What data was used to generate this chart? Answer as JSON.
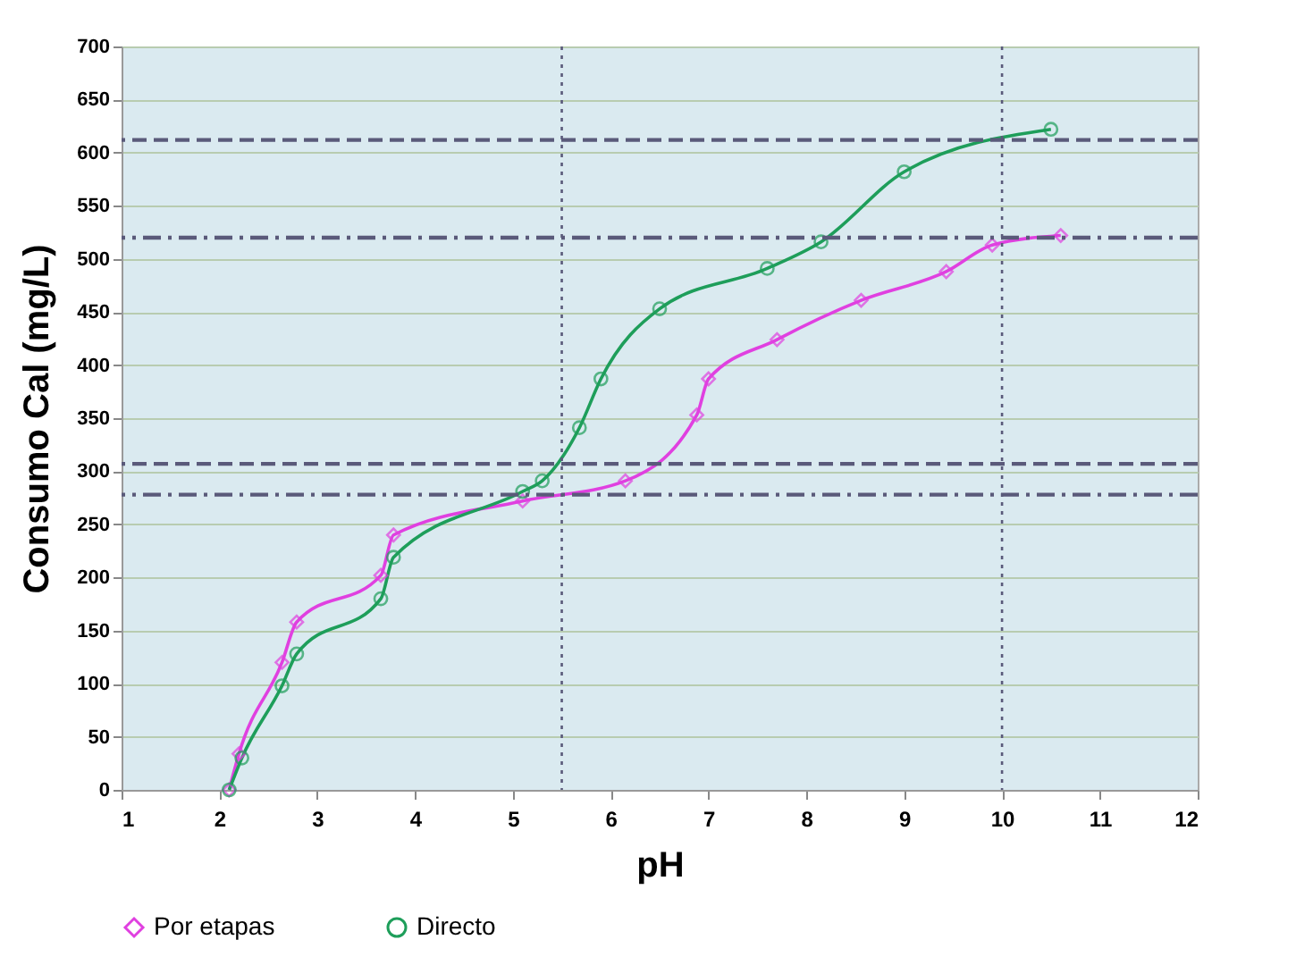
{
  "chart_data": {
    "type": "line",
    "xlabel": "pH",
    "ylabel": "Consumo Cal (mg/L)",
    "xlim": [
      1,
      12
    ],
    "xticks": [
      1,
      2,
      3,
      4,
      5,
      6,
      7,
      8,
      9,
      10,
      11,
      12
    ],
    "ylim": [
      0,
      700
    ],
    "yticks": [
      0,
      50,
      100,
      150,
      200,
      250,
      300,
      350,
      400,
      450,
      500,
      550,
      600,
      650,
      700
    ],
    "grid": "y",
    "legend": "bottom",
    "series": [
      {
        "name": "Por etapas",
        "color": "#e040e0",
        "marker": "diamond",
        "x": [
          2.1,
          2.2,
          2.64,
          2.79,
          3.65,
          3.78,
          5.1,
          6.15,
          6.88,
          7.0,
          7.7,
          8.56,
          9.43,
          9.9,
          10.6
        ],
        "values": [
          0,
          34,
          120,
          158,
          202,
          240,
          272,
          291,
          353,
          387,
          424,
          461,
          488,
          513,
          522
        ]
      },
      {
        "name": "Directo",
        "color": "#1e9e5a",
        "marker": "circle",
        "x": [
          2.1,
          2.23,
          2.64,
          2.79,
          3.65,
          3.78,
          5.1,
          5.3,
          5.68,
          5.9,
          6.5,
          7.6,
          8.15,
          9.0,
          10.5
        ],
        "values": [
          0,
          30,
          98,
          128,
          180,
          219,
          281,
          291,
          341,
          387,
          453,
          491,
          516,
          582,
          622
        ]
      }
    ],
    "ref_lines": [
      {
        "axis": "y",
        "value": 612,
        "color": "#5a5a7a",
        "line_style": "dashed"
      },
      {
        "axis": "y",
        "value": 520,
        "color": "#5a5a7a",
        "line_style": "dashdot"
      },
      {
        "axis": "y",
        "value": 307,
        "color": "#5a5a7a",
        "line_style": "dashed"
      },
      {
        "axis": "y",
        "value": 278,
        "color": "#5a5a7a",
        "line_style": "dashdot"
      },
      {
        "axis": "x",
        "value": 5.5,
        "color": "#5a5a7a",
        "line_style": "dotted"
      },
      {
        "axis": "x",
        "value": 10,
        "color": "#5a5a7a",
        "line_style": "dotted"
      }
    ]
  }
}
